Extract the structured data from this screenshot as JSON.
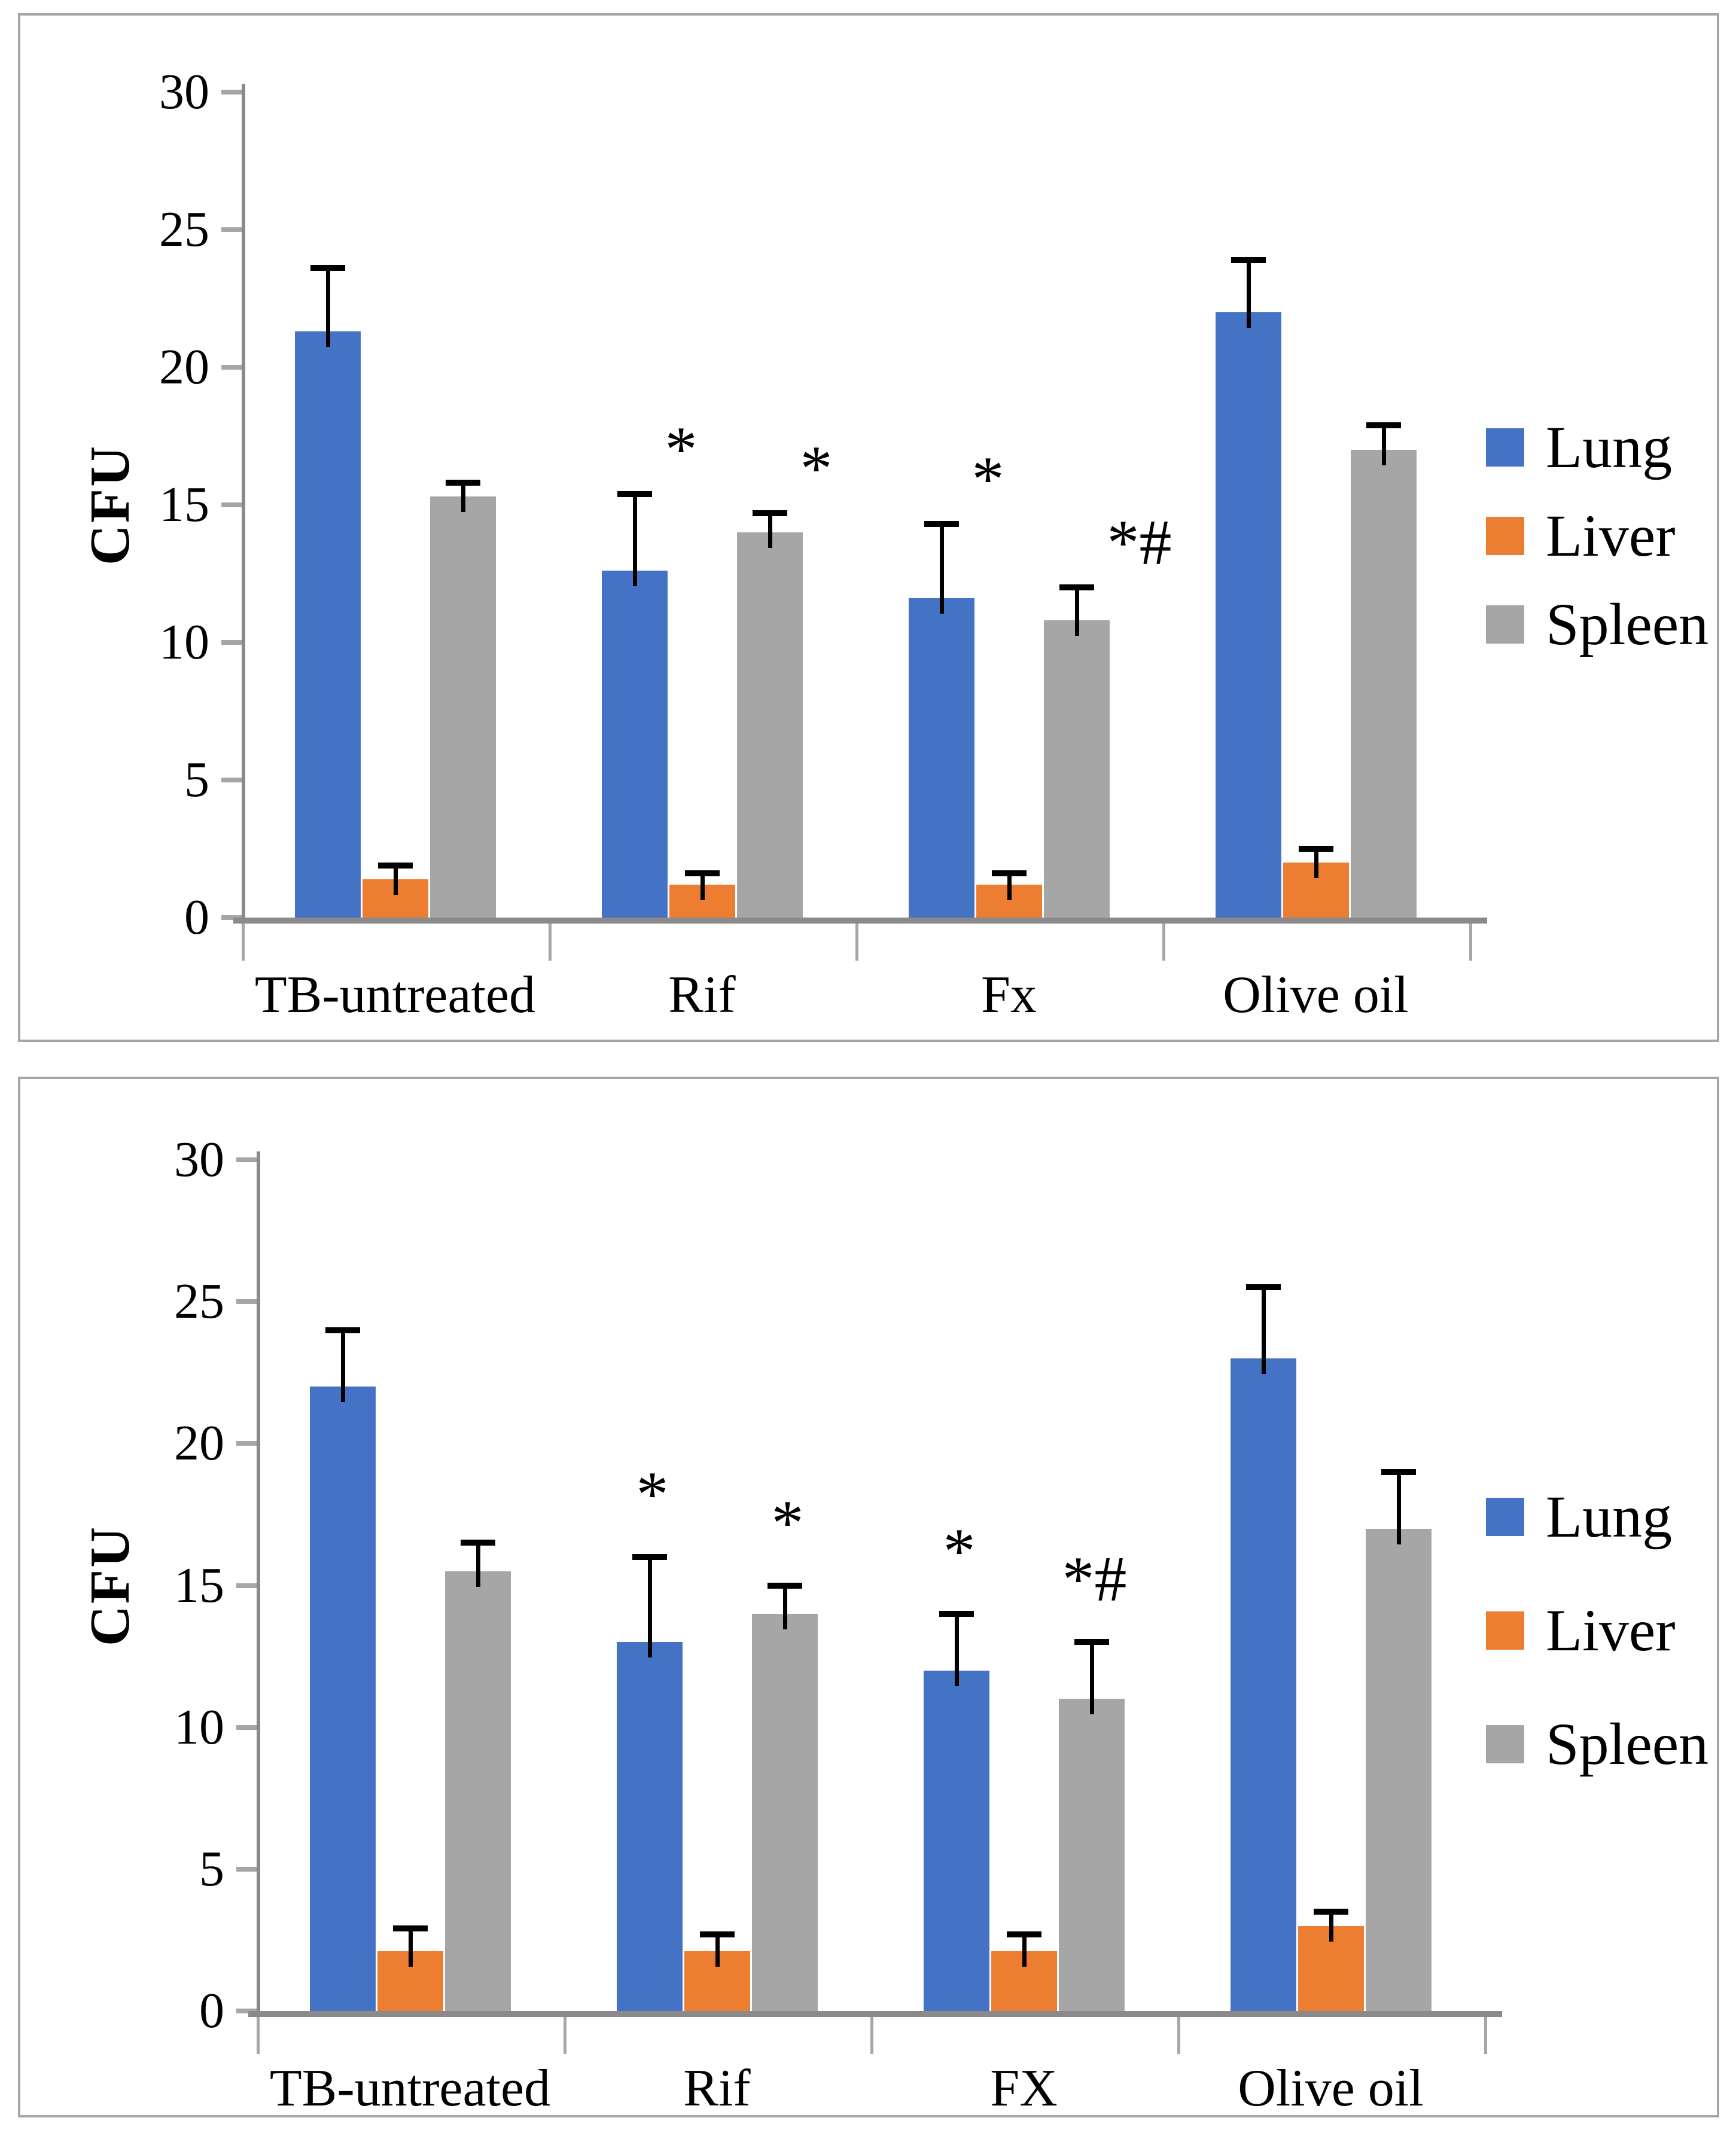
{
  "colors": {
    "lung": "#4472C4",
    "liver": "#ED7D31",
    "spleen": "#A6A6A6",
    "axis": "#8a8a8a",
    "tick": "#a6a6a6",
    "frame": "#a6a6a6",
    "error_bar": "#000000",
    "text": "#000000",
    "background": "#ffffff"
  },
  "legend": {
    "position": "right-middle",
    "items": [
      {
        "label": "Lung",
        "color": "#4472C4"
      },
      {
        "label": "Liver",
        "color": "#ED7D31"
      },
      {
        "label": "Spleen",
        "color": "#A6A6A6"
      }
    ]
  },
  "chart_data": [
    {
      "type": "bar",
      "panel": "top",
      "title": "",
      "xlabel": "",
      "ylabel": "CFU",
      "ylim": [
        0,
        30
      ],
      "yticks": [
        0,
        5,
        10,
        15,
        20,
        25,
        30
      ],
      "grid": false,
      "legend_position": "right-middle",
      "annotation_placement": "beside-right",
      "categories": [
        "TB-untreated",
        "Rif",
        "Fx",
        "Olive oil"
      ],
      "series": [
        {
          "name": "Lung",
          "color": "#4472C4",
          "values": [
            21.3,
            12.6,
            11.6,
            22.0
          ],
          "errors": [
            2.3,
            2.8,
            2.7,
            1.9
          ],
          "annotations": [
            "",
            "*",
            "*",
            ""
          ]
        },
        {
          "name": "Liver",
          "color": "#ED7D31",
          "values": [
            1.4,
            1.2,
            1.2,
            2.0
          ],
          "errors": [
            0.5,
            0.4,
            0.4,
            0.5
          ],
          "annotations": [
            "",
            "",
            "",
            ""
          ]
        },
        {
          "name": "Spleen",
          "color": "#A6A6A6",
          "values": [
            15.3,
            14.0,
            10.8,
            17.0
          ],
          "errors": [
            0.5,
            0.7,
            1.2,
            0.9
          ],
          "annotations": [
            "",
            "*",
            "*#",
            ""
          ]
        }
      ]
    },
    {
      "type": "bar",
      "panel": "bottom",
      "title": "",
      "xlabel": "",
      "ylabel": "CFU",
      "ylim": [
        0,
        30
      ],
      "yticks": [
        0,
        5,
        10,
        15,
        20,
        25,
        30
      ],
      "grid": false,
      "legend_position": "right-middle",
      "annotation_placement": "above",
      "categories": [
        "TB-untreated",
        "Rif",
        "FX",
        "Olive oil"
      ],
      "series": [
        {
          "name": "Lung",
          "color": "#4472C4",
          "values": [
            22.0,
            13.0,
            12.0,
            23.0
          ],
          "errors": [
            2.0,
            3.0,
            2.0,
            2.5
          ],
          "annotations": [
            "",
            "*",
            "*",
            ""
          ]
        },
        {
          "name": "Liver",
          "color": "#ED7D31",
          "values": [
            2.1,
            2.1,
            2.1,
            3.0
          ],
          "errors": [
            0.8,
            0.6,
            0.6,
            0.5
          ],
          "annotations": [
            "",
            "",
            "",
            ""
          ]
        },
        {
          "name": "Spleen",
          "color": "#A6A6A6",
          "values": [
            15.5,
            14.0,
            11.0,
            17.0
          ],
          "errors": [
            1.0,
            1.0,
            2.0,
            2.0
          ],
          "annotations": [
            "",
            "*",
            "*#",
            ""
          ]
        }
      ]
    }
  ]
}
